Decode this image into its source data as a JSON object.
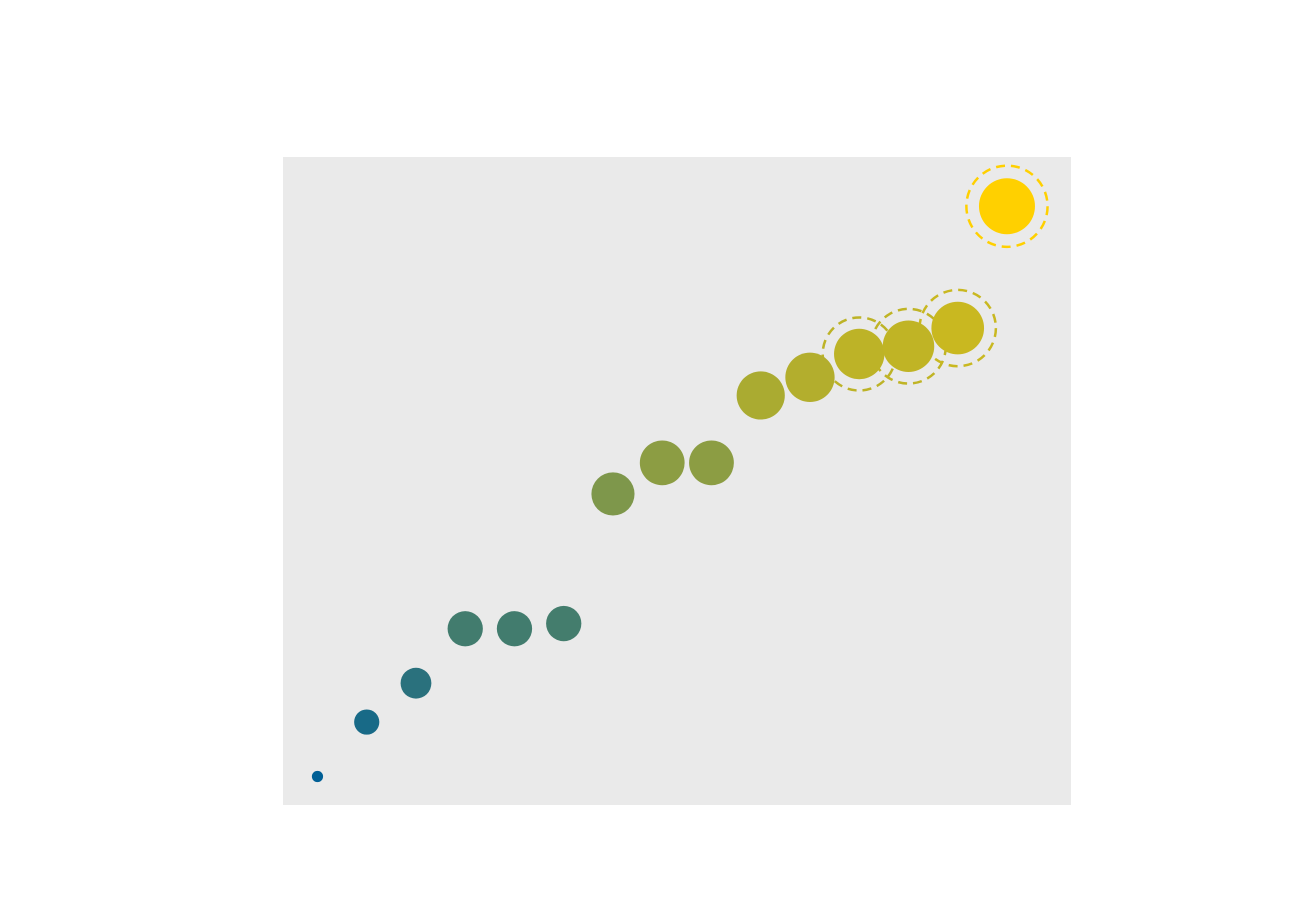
{
  "chart_data": {
    "type": "scatter",
    "title": "",
    "xlabel": "",
    "ylabel": "",
    "grid": false,
    "legend": "none",
    "xlim": [
      0,
      16
    ],
    "ylim": [
      0,
      12.5
    ],
    "colors": {
      "panel": "#EAEAEA",
      "low": "#005F95",
      "high": "#FFD000"
    },
    "points": [
      {
        "x": 0.7,
        "y": 0.55,
        "size": 0.2,
        "highlight": false
      },
      {
        "x": 1.7,
        "y": 1.6,
        "size": 0.45,
        "highlight": false
      },
      {
        "x": 2.7,
        "y": 2.35,
        "size": 0.55,
        "highlight": false
      },
      {
        "x": 3.7,
        "y": 3.4,
        "size": 0.63,
        "highlight": false
      },
      {
        "x": 4.7,
        "y": 3.4,
        "size": 0.63,
        "highlight": false
      },
      {
        "x": 5.7,
        "y": 3.5,
        "size": 0.63,
        "highlight": false
      },
      {
        "x": 6.7,
        "y": 6.0,
        "size": 0.77,
        "highlight": false
      },
      {
        "x": 7.7,
        "y": 6.6,
        "size": 0.8,
        "highlight": false
      },
      {
        "x": 8.7,
        "y": 6.6,
        "size": 0.8,
        "highlight": false
      },
      {
        "x": 9.7,
        "y": 7.9,
        "size": 0.86,
        "highlight": false
      },
      {
        "x": 10.7,
        "y": 8.25,
        "size": 0.88,
        "highlight": false
      },
      {
        "x": 11.7,
        "y": 8.7,
        "size": 0.9,
        "highlight": true
      },
      {
        "x": 12.7,
        "y": 8.85,
        "size": 0.92,
        "highlight": true
      },
      {
        "x": 13.7,
        "y": 9.2,
        "size": 0.94,
        "highlight": true
      },
      {
        "x": 14.7,
        "y": 11.55,
        "size": 1.0,
        "highlight": true
      }
    ]
  }
}
